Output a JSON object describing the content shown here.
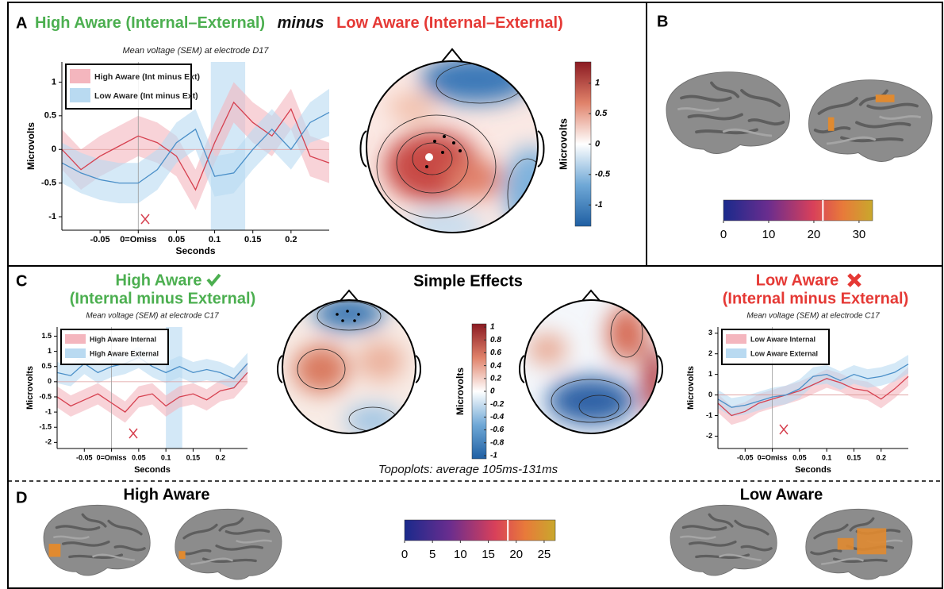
{
  "figure": {
    "panel_a": {
      "letter": "A",
      "title_left": "High Aware (Internal–External)",
      "title_mid": "minus",
      "title_right": "Low Aware (Internal–External)"
    },
    "panel_b": {
      "letter": "B"
    },
    "panel_c": {
      "letter": "C",
      "left_title": "High Aware",
      "left_subtitle": "(Internal minus External)",
      "center_title": "Simple Effects",
      "right_title": "Low Aware",
      "right_subtitle": "(Internal minus External)",
      "topoplot_note": "Topoplots: average 105ms-131ms"
    },
    "panel_d": {
      "letter": "D",
      "left_title": "High Aware",
      "right_title": "Low Aware"
    },
    "colorbars": [
      {
        "label": "Microvolts",
        "orientation": "vertical",
        "palette": "diverging",
        "lim": [
          -1.35,
          1.35
        ],
        "ticks": [
          1,
          0.5,
          0,
          -0.5,
          -1
        ]
      },
      {
        "orientation": "horizontal",
        "palette": "plasma",
        "lim": [
          0,
          33
        ],
        "ticks": [
          0,
          10,
          20,
          30
        ],
        "threshold": 22
      },
      {
        "label": "Microvolts",
        "orientation": "vertical",
        "palette": "diverging",
        "lim": [
          -1.05,
          1.05
        ],
        "ticks": [
          1,
          0.8,
          0.6,
          0.4,
          0.2,
          0,
          -0.2,
          -0.4,
          -0.6,
          -0.8,
          -1
        ]
      },
      {
        "orientation": "horizontal",
        "palette": "plasma",
        "lim": [
          0,
          27
        ],
        "ticks": [
          0,
          5,
          10,
          15,
          20,
          25
        ],
        "threshold": 18.5
      }
    ]
  },
  "chart_data": [
    {
      "type": "line",
      "title": "Mean voltage (SEM) at electrode D17",
      "xlabel": "Seconds",
      "ylabel": "Microvolts",
      "x": [
        -0.1,
        -0.075,
        -0.05,
        -0.025,
        0,
        0.025,
        0.05,
        0.075,
        0.1,
        0.125,
        0.15,
        0.175,
        0.2,
        0.225,
        0.25
      ],
      "xlim": [
        -0.1,
        0.25
      ],
      "ylim": [
        -1.2,
        1.3
      ],
      "xticks": [
        -0.05,
        {
          "value": 0,
          "label": "0=Omiss"
        },
        0.05,
        0.1,
        0.15,
        0.2
      ],
      "yticks": [
        -1,
        -0.5,
        0,
        0.5,
        1
      ],
      "highlight": [
        0.095,
        0.14
      ],
      "legend": "upper left",
      "series": [
        {
          "name": "High Aware (Int minus Ext)",
          "color": "#d6404f",
          "band_color": "#f4b6be",
          "values": [
            0,
            -0.3,
            -0.1,
            0.05,
            0.2,
            0.1,
            -0.1,
            -0.6,
            0.1,
            0.7,
            0.4,
            0.2,
            0.6,
            -0.1,
            -0.2
          ],
          "sem": [
            0.3,
            0.3,
            0.3,
            0.3,
            0.3,
            0.3,
            0.3,
            0.3,
            0.3,
            0.3,
            0.3,
            0.3,
            0.3,
            0.3,
            0.3
          ]
        },
        {
          "name": "Low Aware (Int minus Ext)",
          "color": "#4a8fc8",
          "band_color": "#b9daf1",
          "values": [
            -0.2,
            -0.35,
            -0.45,
            -0.5,
            -0.5,
            -0.3,
            0.1,
            0.3,
            -0.4,
            -0.35,
            0,
            0.3,
            0,
            0.4,
            0.55
          ],
          "sem": [
            0.3,
            0.3,
            0.3,
            0.3,
            0.3,
            0.3,
            0.3,
            0.3,
            0.3,
            0.3,
            0.3,
            0.3,
            0.3,
            0.3,
            0.35
          ]
        }
      ]
    },
    {
      "type": "line",
      "title": "Mean voltage (SEM) at electrode C17",
      "xlabel": "Seconds",
      "ylabel": "Microvolts",
      "x": [
        -0.1,
        -0.075,
        -0.05,
        -0.025,
        0,
        0.025,
        0.05,
        0.075,
        0.1,
        0.125,
        0.15,
        0.175,
        0.2,
        0.225,
        0.25
      ],
      "xlim": [
        -0.1,
        0.25
      ],
      "ylim": [
        -2.2,
        1.8
      ],
      "xticks": [
        -0.05,
        {
          "value": 0,
          "label": "0=Omiss"
        },
        0.05,
        0.1,
        0.15,
        0.2
      ],
      "yticks": [
        -2,
        -1.5,
        -1,
        -0.5,
        0,
        0.5,
        1,
        1.5
      ],
      "highlight": [
        0.1,
        0.13
      ],
      "legend": "upper left",
      "series": [
        {
          "name": "High Aware Internal",
          "color": "#d6404f",
          "band_color": "#f4b6be",
          "values": [
            -0.5,
            -0.8,
            -0.6,
            -0.4,
            -0.7,
            -1,
            -0.5,
            -0.4,
            -0.8,
            -0.5,
            -0.4,
            -0.6,
            -0.3,
            -0.2,
            0.3
          ],
          "sem": [
            0.35,
            0.35,
            0.35,
            0.35,
            0.35,
            0.35,
            0.35,
            0.35,
            0.35,
            0.35,
            0.35,
            0.35,
            0.35,
            0.35,
            0.35
          ]
        },
        {
          "name": "High Aware External",
          "color": "#4a8fc8",
          "band_color": "#b9daf1",
          "values": [
            0.3,
            0.2,
            0.6,
            0.3,
            0.5,
            0.6,
            0.8,
            0.5,
            0.3,
            0.5,
            0.3,
            0.4,
            0.3,
            0.1,
            0.6
          ],
          "sem": [
            0.35,
            0.35,
            0.35,
            0.35,
            0.35,
            0.35,
            0.35,
            0.35,
            0.35,
            0.35,
            0.35,
            0.35,
            0.35,
            0.35,
            0.35
          ]
        }
      ]
    },
    {
      "type": "line",
      "title": "Mean voltage (SEM) at electrode C17",
      "xlabel": "Seconds",
      "ylabel": "Microvolts",
      "x": [
        -0.1,
        -0.075,
        -0.05,
        -0.025,
        0,
        0.025,
        0.05,
        0.075,
        0.1,
        0.125,
        0.15,
        0.175,
        0.2,
        0.225,
        0.25
      ],
      "xlim": [
        -0.1,
        0.25
      ],
      "ylim": [
        -2.6,
        3.3
      ],
      "xticks": [
        -0.05,
        {
          "value": 0,
          "label": "0=Omiss"
        },
        0.05,
        0.1,
        0.15,
        0.2
      ],
      "yticks": [
        -2,
        -1,
        0,
        1,
        2,
        3
      ],
      "legend": "upper left",
      "series": [
        {
          "name": "Low Aware Internal",
          "color": "#d6404f",
          "band_color": "#f4b6be",
          "values": [
            -0.4,
            -1,
            -0.8,
            -0.4,
            -0.2,
            0,
            0.2,
            0.5,
            0.8,
            0.6,
            0.3,
            0.2,
            -0.2,
            0.3,
            0.9
          ],
          "sem": [
            0.45,
            0.45,
            0.45,
            0.45,
            0.45,
            0.45,
            0.45,
            0.45,
            0.45,
            0.45,
            0.45,
            0.45,
            0.45,
            0.45,
            0.45
          ]
        },
        {
          "name": "Low Aware External",
          "color": "#4a8fc8",
          "band_color": "#b9daf1",
          "values": [
            -0.2,
            -0.6,
            -0.5,
            -0.3,
            -0.1,
            0,
            0.3,
            0.9,
            1,
            0.7,
            1,
            0.8,
            0.9,
            1.1,
            1.5
          ],
          "sem": [
            0.45,
            0.45,
            0.45,
            0.45,
            0.45,
            0.45,
            0.45,
            0.45,
            0.45,
            0.45,
            0.45,
            0.45,
            0.45,
            0.45,
            0.45
          ]
        }
      ]
    }
  ]
}
